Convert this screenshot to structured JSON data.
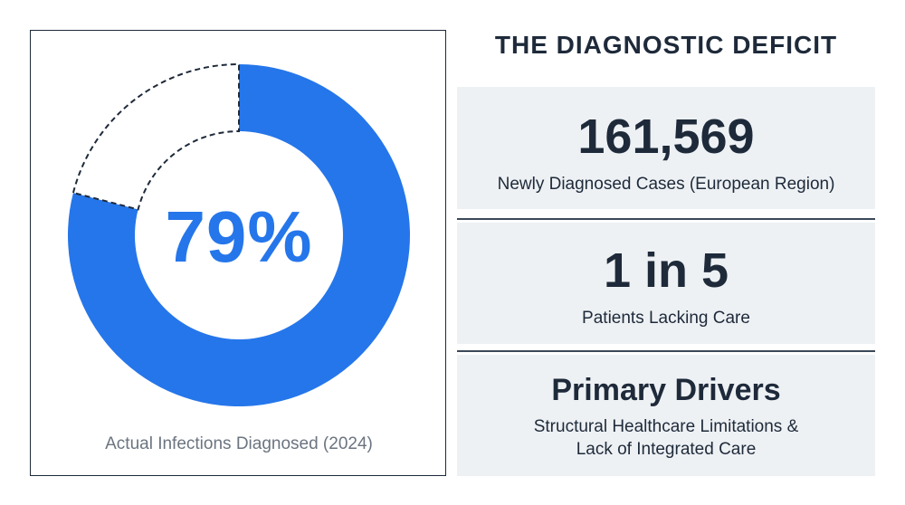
{
  "chart_data": {
    "type": "pie",
    "style": "donut",
    "categories": [
      "Diagnosed",
      "Undiagnosed"
    ],
    "values": [
      79,
      21
    ],
    "center_label": "79%",
    "caption": "Actual Infections Diagnosed (2024)",
    "colors": {
      "diagnosed": "#2576ea",
      "undiagnosed_outline": "#1e2a3a"
    }
  },
  "panel": {
    "title": "THE DIAGNOSTIC DEFICIT",
    "stats": [
      {
        "value": "161,569",
        "label": "Newly Diagnosed Cases (European Region)"
      },
      {
        "value": "1 in 5",
        "label": "Patients Lacking Care"
      },
      {
        "value": "Primary Drivers",
        "label_line1": "Structural Healthcare Limitations &",
        "label_line2": "Lack of Integrated Care"
      }
    ]
  },
  "colors": {
    "accent": "#2576ea",
    "panel_bg": "#eef1f4",
    "text_dark": "#1e2a3a",
    "caption_gray": "#6b7480"
  }
}
